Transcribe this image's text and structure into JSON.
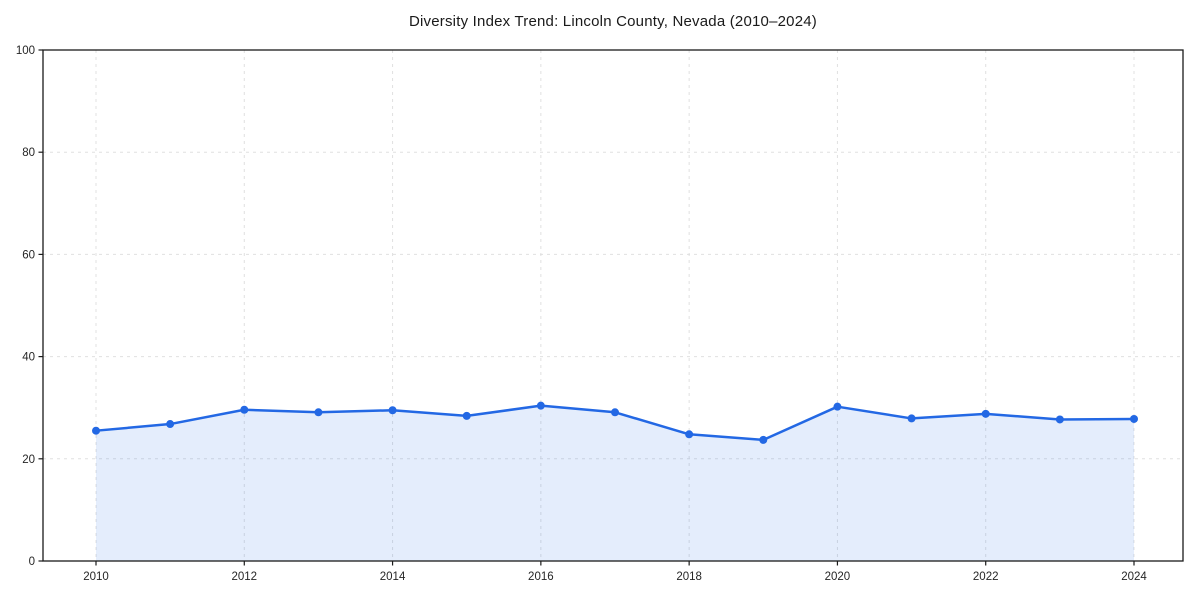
{
  "chart_data": {
    "type": "line",
    "title": "Diversity Index Trend: Lincoln County, Nevada (2010–2024)",
    "xlabel": "",
    "ylabel": "",
    "x": [
      2010,
      2011,
      2012,
      2013,
      2014,
      2015,
      2016,
      2017,
      2018,
      2019,
      2020,
      2021,
      2022,
      2023,
      2024
    ],
    "values": [
      25.5,
      26.8,
      29.6,
      29.1,
      29.5,
      28.4,
      30.4,
      29.1,
      24.8,
      23.7,
      30.2,
      27.9,
      28.8,
      27.7,
      27.8
    ],
    "series_name": "Diversity Index",
    "ylim": [
      0,
      100
    ],
    "yticks": [
      0,
      20,
      40,
      60,
      80,
      100
    ],
    "xticks": [
      2010,
      2012,
      2014,
      2016,
      2018,
      2020,
      2022,
      2024
    ],
    "grid": true,
    "legend": "none",
    "colors": {
      "line": "#2368e4",
      "marker": "#2368e4",
      "fill": "#2368e4",
      "fill_opacity": 0.12,
      "grid": "#e0e0e0",
      "spine": "#1a1a1a",
      "text": "#262626"
    }
  }
}
